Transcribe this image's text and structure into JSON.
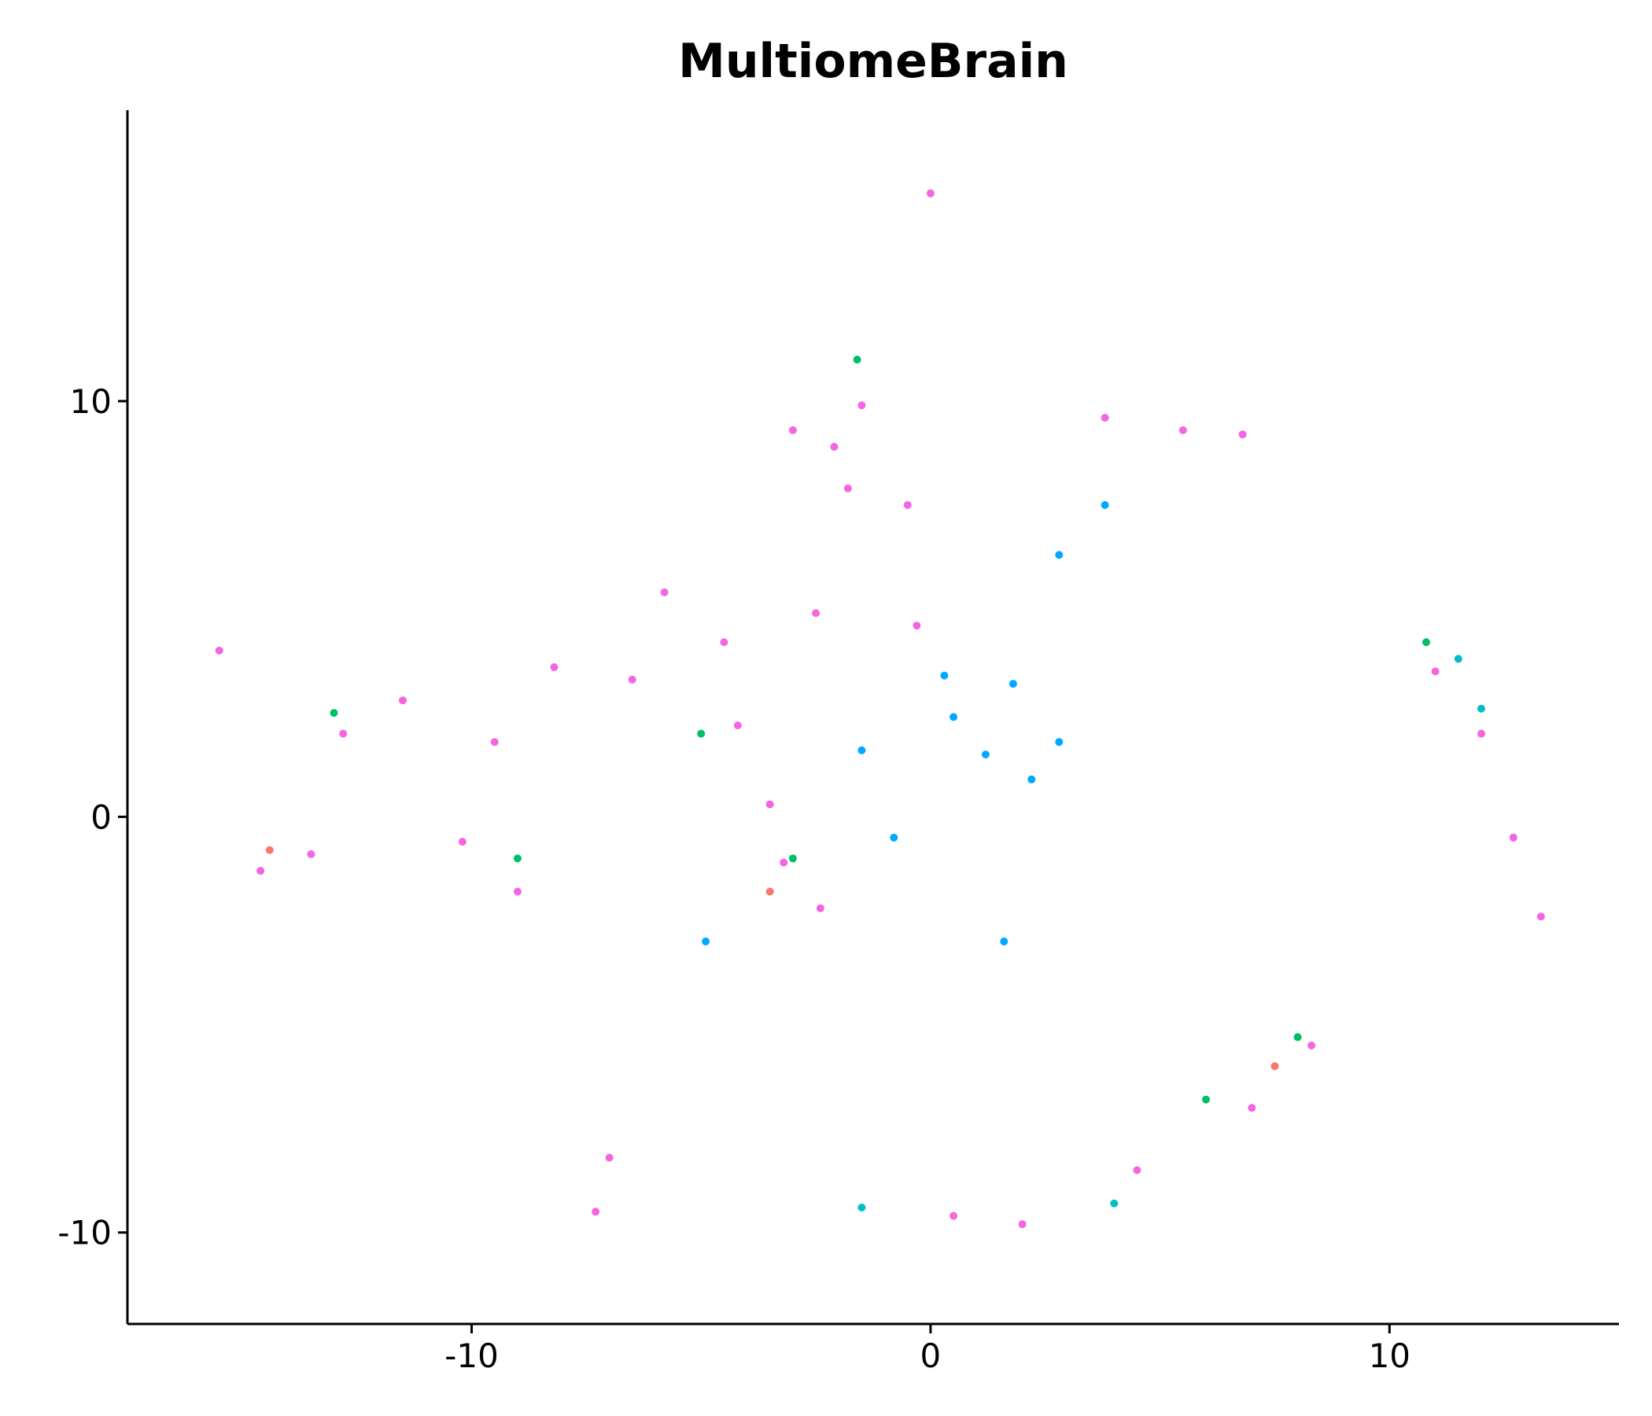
{
  "chart_data": {
    "type": "scatter",
    "title": "MultiomeBrain",
    "xlabel": "",
    "ylabel": "",
    "xlim": [
      -17.5,
      15
    ],
    "ylim": [
      -12.2,
      17
    ],
    "x_ticks": [
      -10,
      0,
      10
    ],
    "x_tick_labels": [
      "-10",
      "0",
      "10"
    ],
    "y_ticks": [
      -10,
      0,
      10
    ],
    "y_tick_labels": [
      "-10",
      "0",
      "10"
    ],
    "grid": false,
    "legend": "none",
    "palette": [
      "#f564e3",
      "#ff6ab0",
      "#00a9ff",
      "#00be67",
      "#00bfc4",
      "#7cae00",
      "#cd9600",
      "#f8766d"
    ],
    "series": [
      {
        "color": "#f564e3",
        "x": [
          0.0,
          -2.1,
          -1.5,
          -3.0,
          -1.8,
          -0.5,
          -2.5,
          -4.5,
          -5.8,
          -4.2,
          -3.5,
          -6.5,
          -8.2,
          -9.5,
          -11.5,
          -12.8,
          -10.2,
          -9.0,
          -13.5,
          -14.6,
          -3.2,
          -2.4,
          -0.3,
          5.5,
          3.8,
          6.8,
          11.0,
          12.0,
          12.7,
          13.3,
          -7.3,
          -7.0,
          2.0,
          4.5,
          7.0,
          8.3,
          0.5,
          -15.5
        ],
        "y": [
          15.0,
          8.9,
          9.9,
          9.3,
          7.9,
          7.5,
          4.9,
          4.2,
          5.4,
          2.2,
          0.3,
          3.3,
          3.6,
          1.8,
          2.8,
          2.0,
          -0.6,
          -1.8,
          -0.9,
          -1.3,
          -1.1,
          -2.2,
          4.6,
          9.3,
          9.6,
          9.2,
          3.5,
          2.0,
          -0.5,
          -2.4,
          -9.5,
          -8.2,
          -9.8,
          -8.5,
          -7.0,
          -5.5,
          -9.6,
          4.0
        ]
      },
      {
        "color": "#00a9ff",
        "x": [
          0.5,
          1.8,
          2.8,
          0.3,
          1.2,
          2.2,
          2.8,
          3.8,
          -1.5,
          -0.8,
          1.6,
          -4.9
        ],
        "y": [
          2.4,
          3.2,
          1.8,
          3.4,
          1.5,
          0.9,
          6.3,
          7.5,
          1.6,
          -0.5,
          -3.0,
          -3.0
        ]
      },
      {
        "color": "#00be67",
        "x": [
          -5.0,
          -9.0,
          -13.0,
          8.0,
          6.0,
          10.8,
          -3.0,
          -1.6
        ],
        "y": [
          2.0,
          -1.0,
          2.5,
          -5.3,
          -6.8,
          4.2,
          -1.0,
          11.0
        ]
      },
      {
        "color": "#00bfc4",
        "x": [
          11.5,
          12.0,
          -1.5,
          4.0
        ],
        "y": [
          3.8,
          2.6,
          -9.4,
          -9.3
        ]
      },
      {
        "color": "#f8766d",
        "x": [
          -14.4,
          -3.5,
          7.5
        ],
        "y": [
          -0.8,
          -1.8,
          -6.0
        ]
      }
    ]
  }
}
